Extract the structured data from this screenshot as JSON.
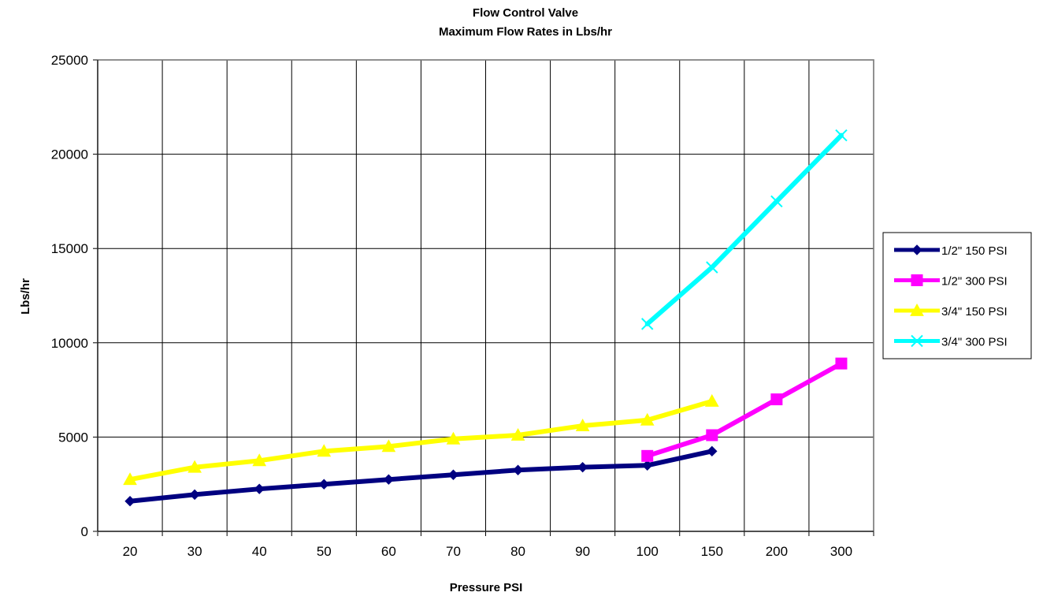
{
  "chart_data": {
    "type": "line",
    "title": "Flow Control Valve",
    "subtitle": "Maximum Flow Rates in Lbs/hr",
    "xlabel": "Pressure PSI",
    "ylabel": "Lbs/hr",
    "categories": [
      "20",
      "30",
      "40",
      "50",
      "60",
      "70",
      "80",
      "90",
      "100",
      "150",
      "200",
      "300"
    ],
    "ylim": [
      0,
      25000
    ],
    "yticks": [
      "0",
      "5000",
      "10000",
      "15000",
      "20000",
      "25000"
    ],
    "grid": true,
    "legend_position": "right",
    "series": [
      {
        "name": "1/2\" 150 PSI",
        "color": "#000080",
        "marker": "diamond",
        "values": [
          1600,
          1950,
          2250,
          2500,
          2750,
          3000,
          3250,
          3400,
          3500,
          4250,
          null,
          null
        ]
      },
      {
        "name": "1/2\" 300 PSI",
        "color": "#ff00ff",
        "marker": "square",
        "values": [
          null,
          null,
          null,
          null,
          null,
          null,
          null,
          null,
          4000,
          5100,
          7000,
          8900
        ]
      },
      {
        "name": "3/4\" 150 PSI",
        "color": "#ffff00",
        "marker": "triangle",
        "values": [
          2750,
          3400,
          3750,
          4250,
          4500,
          4900,
          5100,
          5600,
          5900,
          6900,
          null,
          null
        ]
      },
      {
        "name": "3/4\" 300 PSI",
        "color": "#00ffff",
        "marker": "x",
        "values": [
          null,
          null,
          null,
          null,
          null,
          null,
          null,
          null,
          11000,
          14000,
          17500,
          21000
        ]
      }
    ]
  }
}
